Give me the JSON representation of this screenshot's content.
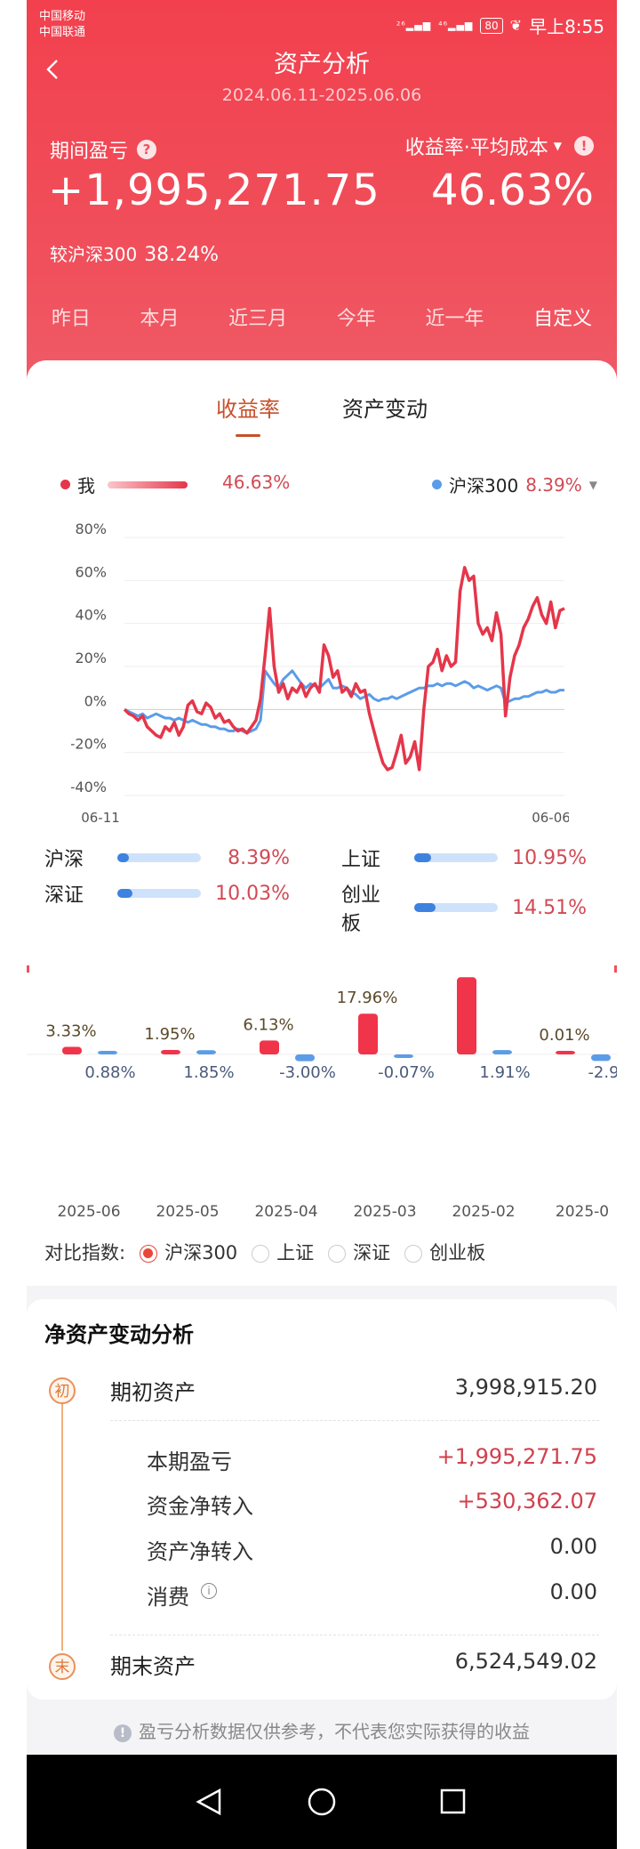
{
  "status": {
    "carrier1": "中国移动",
    "carrier2": "中国联通",
    "sig1": "²⁶",
    "sig2": "⁴⁶",
    "battery": "80",
    "time": "早上8:55"
  },
  "header": {
    "title": "资产分析",
    "date_range": "2024.06.11-2025.06.06"
  },
  "summary": {
    "pl_label": "期间盈亏",
    "rate_label": "收益率·平均成本",
    "pl_value": "+1,995,271.75",
    "rate_value": "46.63%",
    "compare_label": "较沪深300",
    "compare_value": "38.24%"
  },
  "ranges": [
    "昨日",
    "本月",
    "近三月",
    "今年",
    "近一年",
    "自定义"
  ],
  "tabs": [
    "收益率",
    "资产变动"
  ],
  "legend": {
    "me": "我",
    "me_value": "46.63%",
    "index": "沪深300",
    "index_value": "8.39%",
    "me_color": "#e5364a",
    "index_color": "#5b9ce8"
  },
  "chart_data": {
    "type": "line",
    "y_ticks": [
      "80%",
      "60%",
      "40%",
      "20%",
      "0%",
      "-20%",
      "-40%"
    ],
    "ylim": [
      -40,
      80
    ],
    "x_start": "06-11",
    "x_end": "06-06",
    "series": [
      {
        "name": "我",
        "color": "#e5364a",
        "values": [
          0,
          -2,
          -3,
          -5,
          -3,
          -8,
          -10,
          -12,
          -13,
          -8,
          -10,
          -6,
          -12,
          -8,
          2,
          4,
          -1,
          -2,
          3,
          1,
          -4,
          -2,
          -6,
          -5,
          -8,
          -10,
          -9,
          -11,
          -8,
          -5,
          5,
          25,
          47,
          20,
          8,
          12,
          5,
          10,
          8,
          12,
          6,
          10,
          12,
          8,
          30,
          25,
          15,
          18,
          8,
          10,
          6,
          12,
          8,
          9,
          -2,
          -10,
          -18,
          -25,
          -28,
          -27,
          -20,
          -12,
          -25,
          -22,
          -15,
          -28,
          0,
          20,
          22,
          28,
          18,
          25,
          20,
          22,
          55,
          66,
          60,
          62,
          40,
          35,
          38,
          32,
          45,
          35,
          -3,
          15,
          25,
          30,
          38,
          42,
          48,
          52,
          44,
          40,
          50,
          38,
          46,
          47
        ]
      },
      {
        "name": "沪深300",
        "color": "#5b9ce8",
        "values": [
          0,
          -1,
          -2,
          -3,
          -2,
          -4,
          -3,
          -2,
          -3,
          -4,
          -4,
          -5,
          -4,
          -5,
          -6,
          -5,
          -6,
          -7,
          -7,
          -8,
          -8,
          -9,
          -9,
          -10,
          -10,
          -9,
          -10,
          -11,
          -10,
          -9,
          -5,
          18,
          15,
          12,
          10,
          14,
          16,
          18,
          15,
          12,
          10,
          12,
          11,
          10,
          12,
          14,
          10,
          10,
          11,
          10,
          8,
          7,
          5,
          6,
          7,
          5,
          4,
          5,
          5,
          6,
          5,
          6,
          7,
          8,
          9,
          10,
          10,
          11,
          11,
          12,
          11,
          12,
          12,
          11,
          12,
          13,
          12,
          10,
          11,
          10,
          9,
          10,
          11,
          10,
          3,
          4,
          5,
          5,
          6,
          6,
          7,
          8,
          8,
          9,
          8,
          8,
          9,
          9
        ]
      }
    ]
  },
  "indices": [
    {
      "name": "沪深",
      "value": "8.39%",
      "fill": 0.14
    },
    {
      "name": "上证",
      "value": "10.95%",
      "fill": 0.2
    },
    {
      "name": "深证",
      "value": "10.03%",
      "fill": 0.18
    },
    {
      "name": "创业板",
      "value": "14.51%",
      "fill": 0.26
    }
  ],
  "monthly": {
    "type": "bar",
    "categories": [
      "2025-06",
      "2025-05",
      "2025-04",
      "2025-03",
      "2025-02",
      "2025-0"
    ],
    "me": [
      "3.33%",
      "1.95%",
      "6.13%",
      "17.96%",
      "",
      "0.01%"
    ],
    "index": [
      "0.88%",
      "1.85%",
      "-3.00%",
      "-0.07%",
      "1.91%",
      "-2.9"
    ],
    "me_values": [
      3.33,
      1.95,
      6.13,
      17.96,
      34,
      0.01
    ],
    "index_values": [
      0.88,
      1.85,
      -3.0,
      -0.07,
      1.91,
      -2.9
    ]
  },
  "compare": {
    "label": "对比指数:",
    "options": [
      "沪深300",
      "上证",
      "深证",
      "创业板"
    ],
    "selected": 0
  },
  "networth": {
    "title": "净资产变动分析",
    "start_badge": "初",
    "end_badge": "末",
    "start_label": "期初资产",
    "start_value": "3,998,915.20",
    "items": [
      {
        "label": "本期盈亏",
        "value": "+1,995,271.75",
        "red": true
      },
      {
        "label": "资金净转入",
        "value": "+530,362.07",
        "red": true
      },
      {
        "label": "资产净转入",
        "value": "0.00",
        "red": false
      },
      {
        "label": "消费",
        "value": "0.00",
        "red": false
      }
    ],
    "end_label": "期末资产",
    "end_value": "6,524,549.02"
  },
  "disclaimer": "盈亏分析数据仅供参考，不代表您实际获得的收益"
}
